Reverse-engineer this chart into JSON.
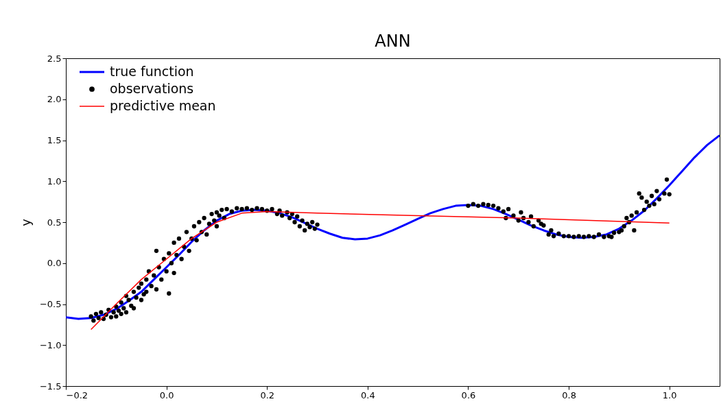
{
  "chart_data": {
    "type": "line",
    "title": "ANN",
    "ylabel": "y",
    "xlim": [
      -0.2,
      1.1
    ],
    "ylim": [
      -1.5,
      2.5
    ],
    "xticks": [
      {
        "value": -0.2,
        "label": "−0.2"
      },
      {
        "value": 0,
        "label": "0.0"
      },
      {
        "value": 0.2,
        "label": "0.2"
      },
      {
        "value": 0.4,
        "label": "0.4"
      },
      {
        "value": 0.6,
        "label": "0.6"
      },
      {
        "value": 0.8,
        "label": "0.8"
      },
      {
        "value": 1,
        "label": "1.0"
      }
    ],
    "yticks": [
      {
        "value": -1.5,
        "label": "−1.5"
      },
      {
        "value": -1,
        "label": "−1.0"
      },
      {
        "value": -0.5,
        "label": "−0.5"
      },
      {
        "value": 0,
        "label": "0.0"
      },
      {
        "value": 0.5,
        "label": "0.5"
      },
      {
        "value": 1,
        "label": "1.0"
      },
      {
        "value": 1.5,
        "label": "1.5"
      },
      {
        "value": 2,
        "label": "2.0"
      },
      {
        "value": 2.5,
        "label": "2.5"
      }
    ],
    "grid": false,
    "legend": "top left",
    "series": [
      {
        "name": "true function",
        "type": "line",
        "color": "#0000ff",
        "x": [
          -0.2,
          -0.175,
          -0.15,
          -0.125,
          -0.1,
          -0.075,
          -0.05,
          -0.025,
          0,
          0.025,
          0.05,
          0.075,
          0.1,
          0.125,
          0.15,
          0.175,
          0.2,
          0.225,
          0.25,
          0.275,
          0.3,
          0.325,
          0.35,
          0.375,
          0.4,
          0.425,
          0.45,
          0.475,
          0.5,
          0.525,
          0.55,
          0.575,
          0.6,
          0.625,
          0.65,
          0.675,
          0.7,
          0.725,
          0.75,
          0.775,
          0.8,
          0.825,
          0.85,
          0.875,
          0.9,
          0.925,
          0.95,
          0.975,
          1.0,
          1.025,
          1.05,
          1.075,
          1.1
        ],
        "values": [
          -0.66,
          -0.68,
          -0.67,
          -0.63,
          -0.56,
          -0.46,
          -0.35,
          -0.2,
          -0.05,
          0.1,
          0.26,
          0.4,
          0.52,
          0.6,
          0.64,
          0.65,
          0.64,
          0.61,
          0.56,
          0.49,
          0.42,
          0.36,
          0.31,
          0.29,
          0.3,
          0.34,
          0.4,
          0.47,
          0.54,
          0.61,
          0.66,
          0.7,
          0.71,
          0.7,
          0.66,
          0.6,
          0.53,
          0.46,
          0.4,
          0.35,
          0.32,
          0.31,
          0.32,
          0.35,
          0.42,
          0.52,
          0.64,
          0.79,
          0.95,
          1.12,
          1.29,
          1.44,
          1.56
        ]
      },
      {
        "name": "observations",
        "type": "scatter",
        "marker": "circle",
        "color": "#000000",
        "x": [
          -0.15,
          -0.145,
          -0.14,
          -0.135,
          -0.13,
          -0.125,
          -0.12,
          -0.115,
          -0.11,
          -0.105,
          -0.1,
          -0.1,
          -0.095,
          -0.09,
          -0.09,
          -0.085,
          -0.08,
          -0.08,
          -0.075,
          -0.07,
          -0.065,
          -0.065,
          -0.06,
          -0.055,
          -0.05,
          -0.05,
          -0.045,
          -0.04,
          -0.04,
          -0.035,
          -0.03,
          -0.025,
          -0.02,
          -0.02,
          -0.015,
          -0.01,
          -0.005,
          0,
          0.005,
          0.005,
          0.01,
          0.015,
          0.015,
          0.02,
          0.025,
          0.03,
          0.035,
          0.04,
          0.045,
          0.05,
          0.055,
          0.06,
          0.065,
          0.07,
          0.075,
          0.08,
          0.085,
          0.09,
          0.095,
          0.1,
          0.1,
          0.105,
          0.11,
          0.115,
          0.12,
          0.13,
          0.14,
          0.15,
          0.16,
          0.17,
          0.18,
          0.19,
          0.2,
          0.21,
          0.22,
          0.225,
          0.23,
          0.24,
          0.245,
          0.25,
          0.255,
          0.26,
          0.265,
          0.27,
          0.275,
          0.28,
          0.285,
          0.29,
          0.295,
          0.3,
          0.6,
          0.61,
          0.62,
          0.63,
          0.64,
          0.65,
          0.66,
          0.67,
          0.675,
          0.68,
          0.69,
          0.7,
          0.705,
          0.71,
          0.72,
          0.725,
          0.73,
          0.74,
          0.745,
          0.75,
          0.76,
          0.765,
          0.77,
          0.78,
          0.79,
          0.8,
          0.81,
          0.82,
          0.83,
          0.84,
          0.85,
          0.86,
          0.87,
          0.88,
          0.885,
          0.89,
          0.9,
          0.905,
          0.91,
          0.915,
          0.92,
          0.925,
          0.93,
          0.935,
          0.94,
          0.945,
          0.95,
          0.955,
          0.96,
          0.965,
          0.97,
          0.975,
          0.98,
          0.99,
          0.995,
          1.0
        ],
        "values": [
          -0.65,
          -0.7,
          -0.62,
          -0.67,
          -0.6,
          -0.68,
          -0.63,
          -0.57,
          -0.66,
          -0.6,
          -0.53,
          -0.65,
          -0.58,
          -0.48,
          -0.62,
          -0.55,
          -0.4,
          -0.6,
          -0.45,
          -0.52,
          -0.35,
          -0.55,
          -0.42,
          -0.3,
          -0.45,
          -0.25,
          -0.38,
          -0.2,
          -0.35,
          -0.1,
          -0.28,
          -0.15,
          -0.32,
          0.15,
          -0.05,
          -0.2,
          0.05,
          -0.1,
          0.12,
          -0.37,
          0.0,
          0.25,
          -0.12,
          0.1,
          0.3,
          0.05,
          0.2,
          0.38,
          0.15,
          0.3,
          0.45,
          0.28,
          0.5,
          0.38,
          0.55,
          0.35,
          0.48,
          0.6,
          0.52,
          0.62,
          0.45,
          0.58,
          0.65,
          0.55,
          0.66,
          0.63,
          0.67,
          0.66,
          0.67,
          0.65,
          0.67,
          0.66,
          0.64,
          0.66,
          0.6,
          0.64,
          0.58,
          0.62,
          0.55,
          0.6,
          0.5,
          0.57,
          0.45,
          0.52,
          0.4,
          0.48,
          0.44,
          0.5,
          0.42,
          0.47,
          0.7,
          0.72,
          0.7,
          0.72,
          0.71,
          0.7,
          0.67,
          0.63,
          0.55,
          0.66,
          0.58,
          0.52,
          0.62,
          0.55,
          0.5,
          0.57,
          0.45,
          0.52,
          0.48,
          0.46,
          0.35,
          0.4,
          0.33,
          0.36,
          0.33,
          0.33,
          0.32,
          0.33,
          0.32,
          0.33,
          0.32,
          0.35,
          0.32,
          0.33,
          0.32,
          0.37,
          0.38,
          0.4,
          0.45,
          0.55,
          0.5,
          0.58,
          0.4,
          0.62,
          0.85,
          0.8,
          0.65,
          0.75,
          0.7,
          0.82,
          0.72,
          0.88,
          0.78,
          0.85,
          1.02,
          0.84
        ]
      },
      {
        "name": "predictive mean",
        "type": "line",
        "color": "#ff0000",
        "x": [
          -0.15,
          -0.1,
          -0.05,
          0,
          0.05,
          0.1,
          0.15,
          0.2,
          0.3,
          0.5,
          0.7,
          1.0
        ],
        "values": [
          -0.81,
          -0.5,
          -0.2,
          0.05,
          0.3,
          0.5,
          0.61,
          0.63,
          0.61,
          0.58,
          0.55,
          0.49
        ]
      }
    ]
  }
}
